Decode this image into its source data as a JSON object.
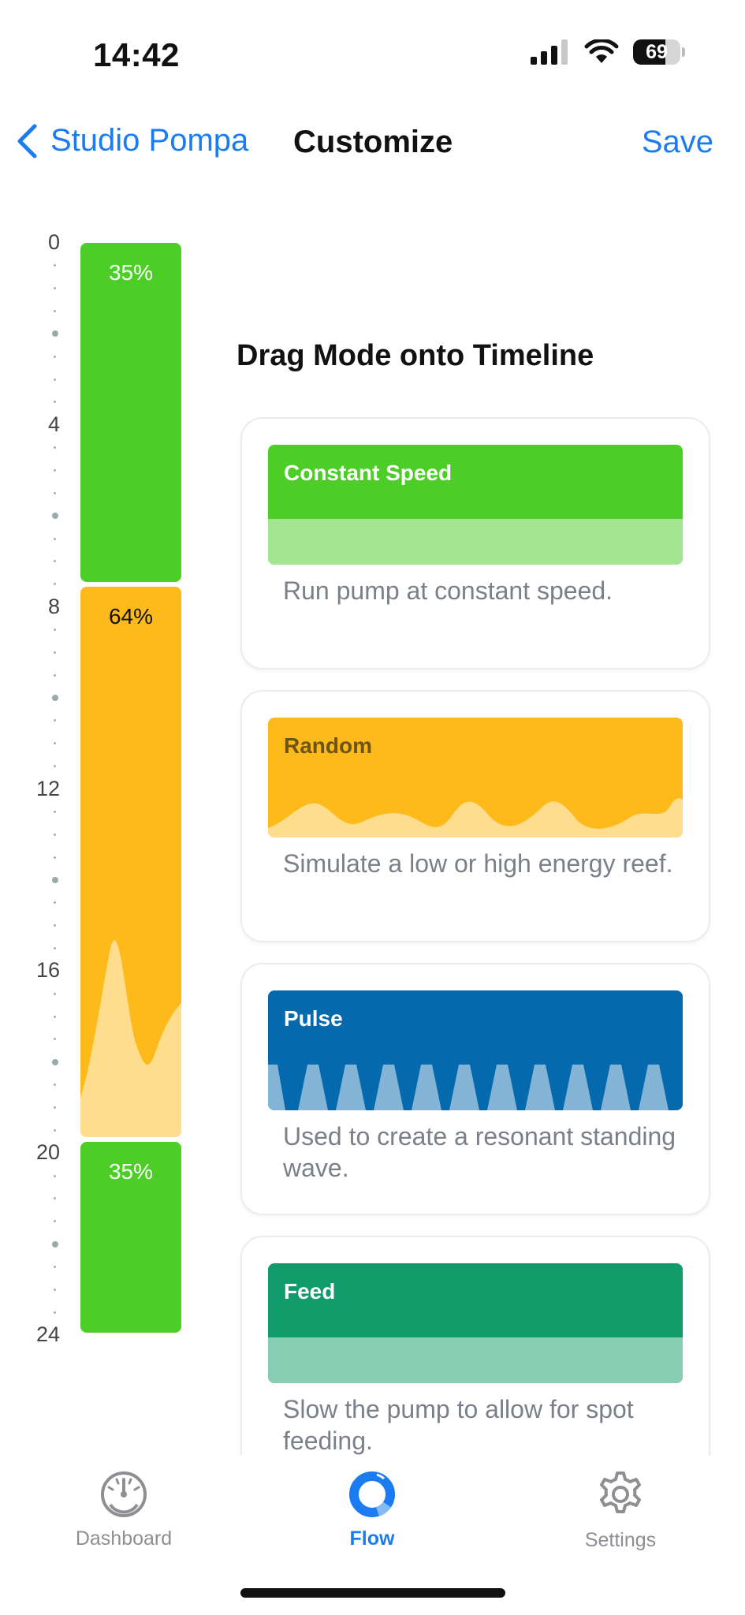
{
  "status": {
    "time": "14:42",
    "battery": "69",
    "battery_level": 0.69
  },
  "nav": {
    "back_label": "Studio Pompa",
    "title": "Customize",
    "save_label": "Save"
  },
  "timeline": {
    "hours": [
      "0",
      "4",
      "8",
      "12",
      "16",
      "20",
      "24"
    ],
    "segments": [
      {
        "label": "35%",
        "mode": "constant",
        "start_hour": 0,
        "end_hour": 7.5,
        "color": "#4cce27"
      },
      {
        "label": "64%",
        "mode": "random",
        "start_hour": 7.5,
        "end_hour": 19.7,
        "color": "#fdba1a"
      },
      {
        "label": "35%",
        "mode": "constant",
        "start_hour": 19.7,
        "end_hour": 24,
        "color": "#4cce27"
      }
    ]
  },
  "modes_heading": "Drag Mode onto Timeline",
  "modes": [
    {
      "title": "Constant Speed",
      "description": "Run pump at constant speed.",
      "color": "#4cce27",
      "light": "#a3e491",
      "title_color": "#ffffff"
    },
    {
      "title": "Random",
      "description": "Simulate a low or high energy reef.",
      "color": "#fdba1a",
      "light": "#fddc8c",
      "title_color": "#6b5415"
    },
    {
      "title": "Pulse",
      "description": "Used to create a resonant standing wave.",
      "color": "#0569ad",
      "light": "#83b4d6",
      "title_color": "#ffffff"
    },
    {
      "title": "Feed",
      "description": "Slow the pump to allow for spot feeding.",
      "color": "#129b6a",
      "light": "#86cdb3",
      "title_color": "#ffffff"
    }
  ],
  "tabs": [
    {
      "label": "Dashboard",
      "icon": "gauge-icon",
      "active": false
    },
    {
      "label": "Flow",
      "icon": "flow-ring-icon",
      "active": true
    },
    {
      "label": "Settings",
      "icon": "gear-icon",
      "active": false
    }
  ],
  "colors": {
    "accent": "#1a7cf0",
    "inactive_tab": "#8e8e93"
  }
}
